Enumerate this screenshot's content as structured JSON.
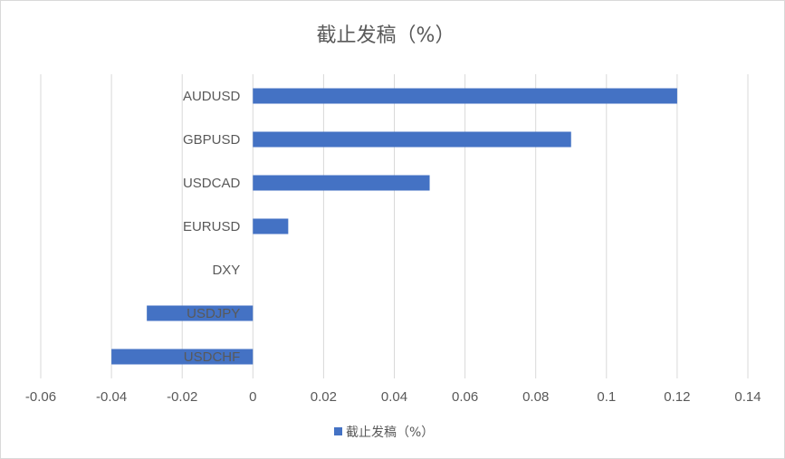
{
  "chart_data": {
    "type": "bar",
    "orientation": "horizontal",
    "title": "截止发稿（%）",
    "categories": [
      "AUDUSD",
      "GBPUSD",
      "USDCAD",
      "EURUSD",
      "DXY",
      "USDJPY",
      "USDCHF"
    ],
    "series": [
      {
        "name": "截止发稿（%）",
        "values": [
          0.12,
          0.09,
          0.05,
          0.01,
          0,
          -0.03,
          -0.04
        ]
      }
    ],
    "xlim": [
      -0.06,
      0.14
    ],
    "x_ticks": [
      "-0.06",
      "-0.04",
      "-0.02",
      "0",
      "0.02",
      "0.04",
      "0.06",
      "0.08",
      "0.1",
      "0.12",
      "0.14"
    ],
    "grid": "vertical",
    "legend_position": "bottom",
    "colors": {
      "bar": "#4472c4",
      "grid": "#d9d9d9",
      "text": "#595959"
    }
  }
}
